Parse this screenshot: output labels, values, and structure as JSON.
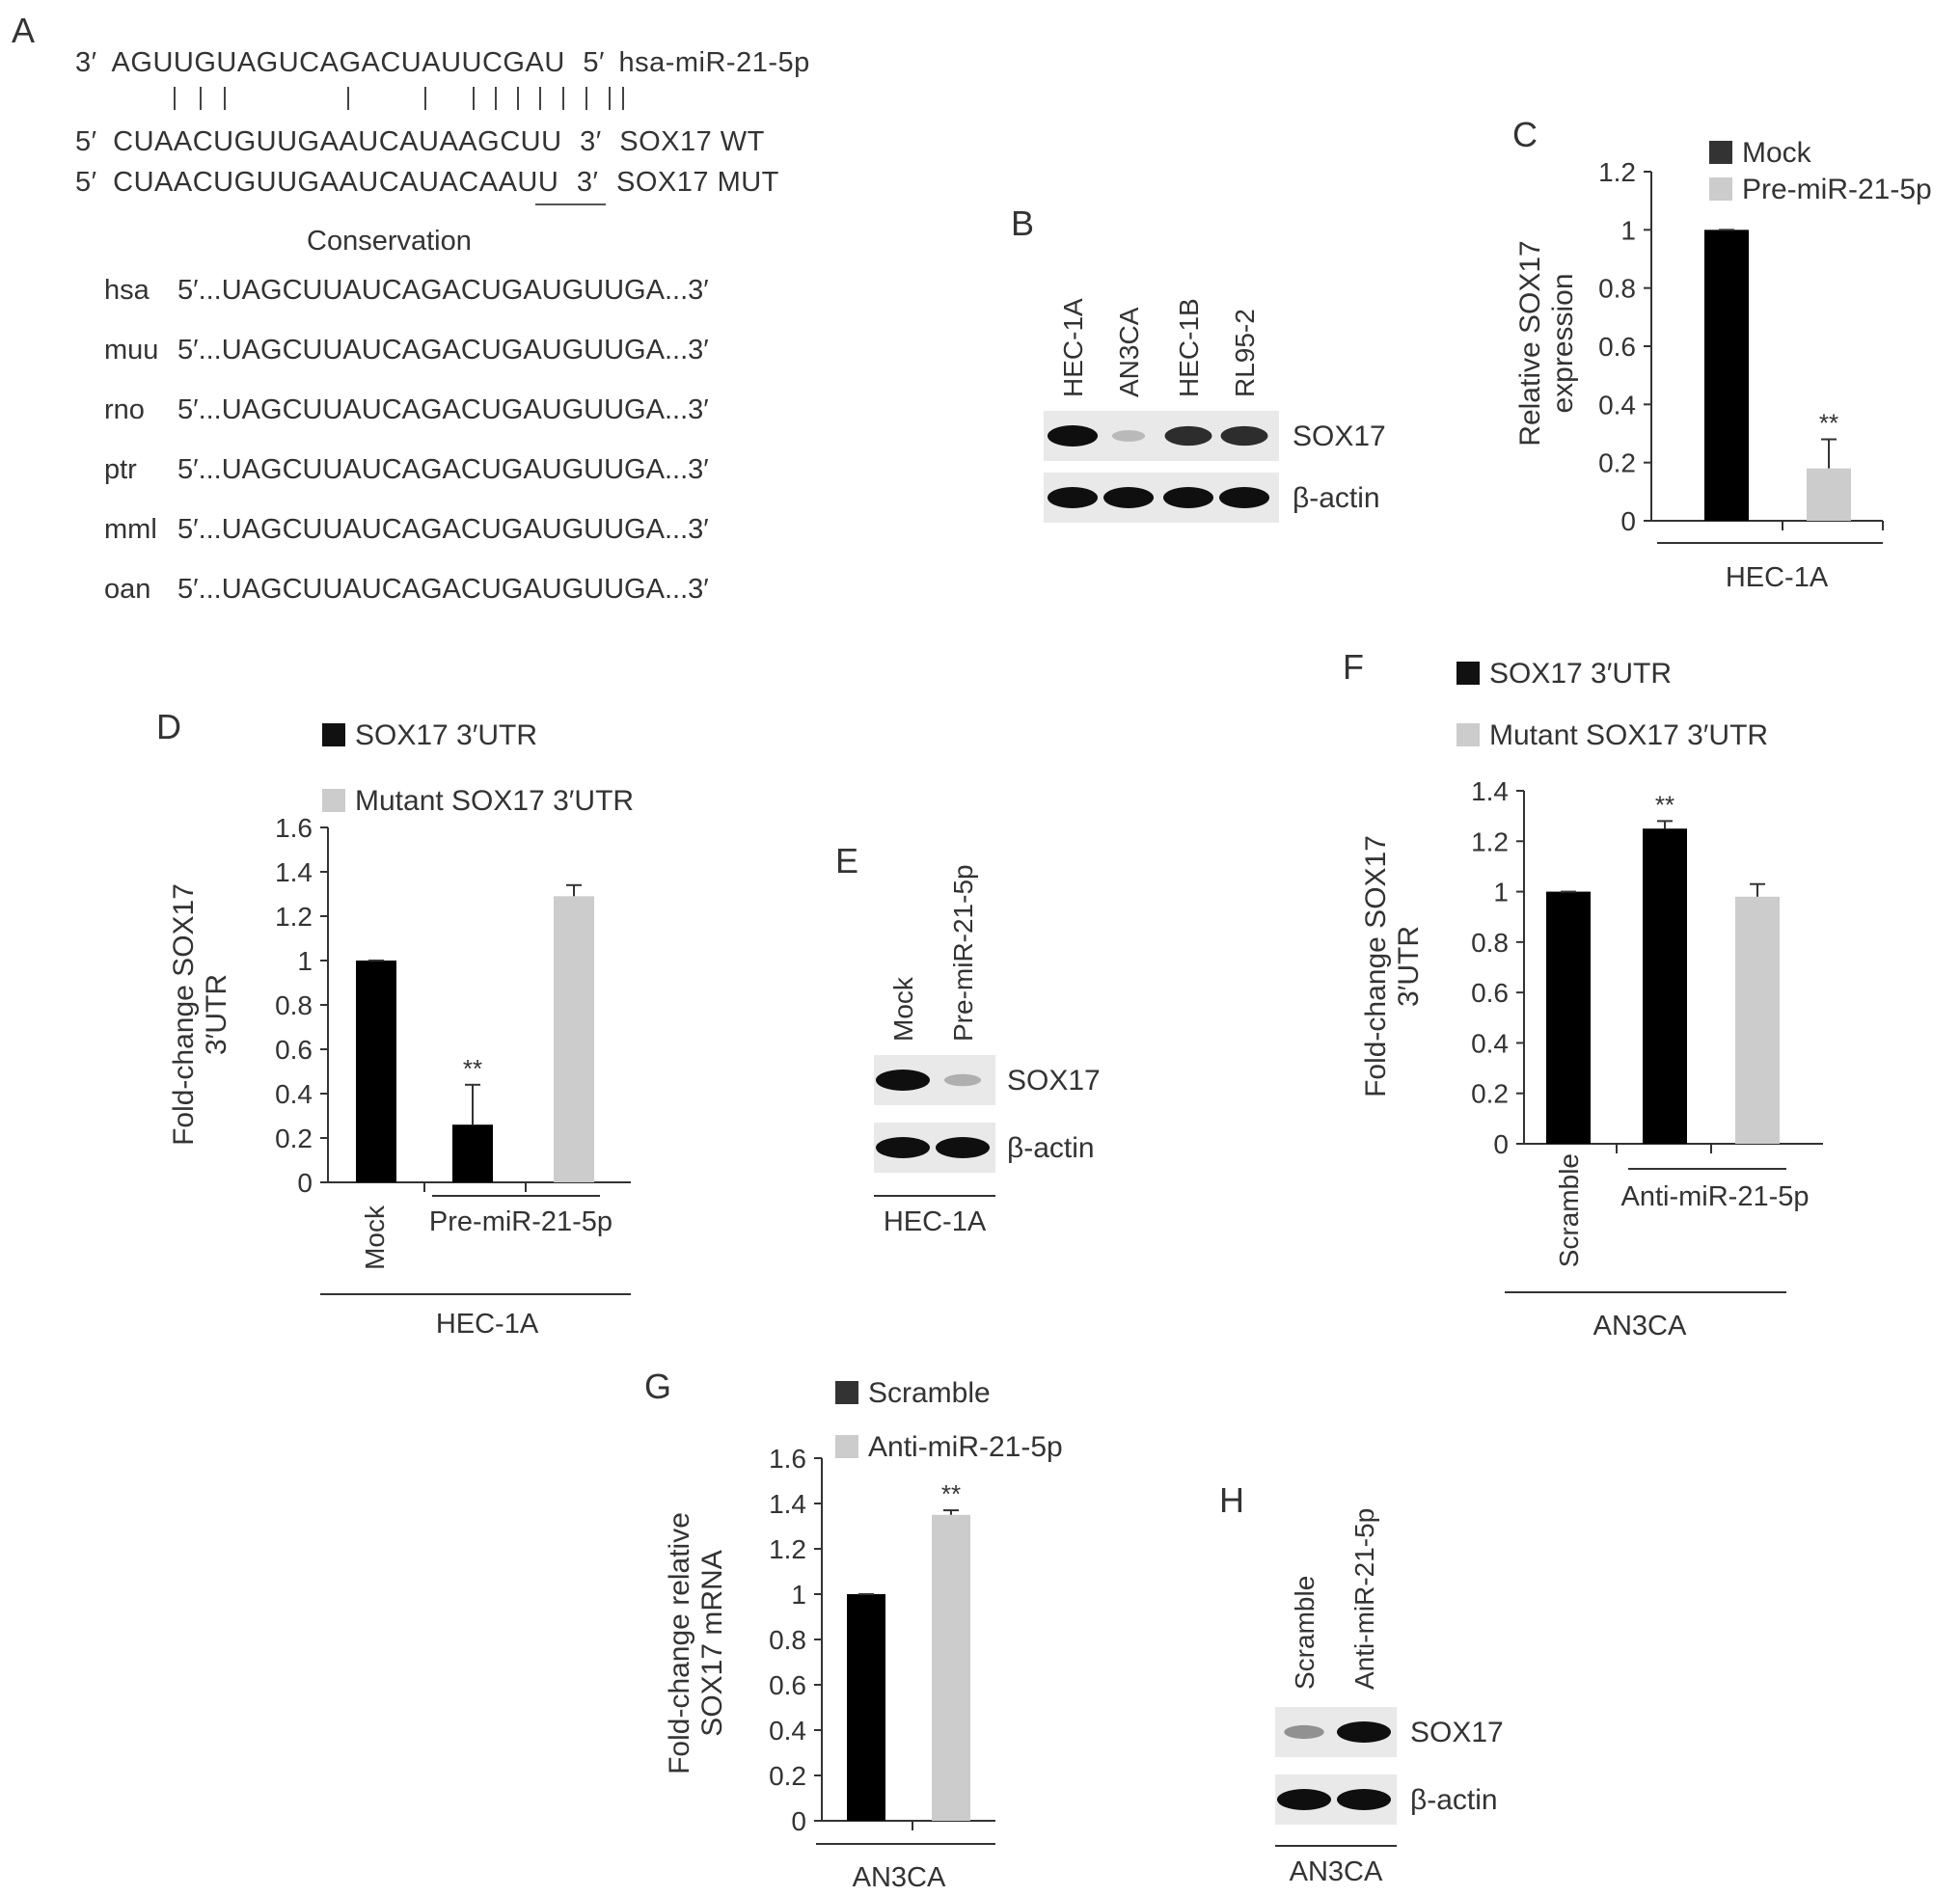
{
  "panels": {
    "A": {
      "letter": "A",
      "mirna": {
        "p3": "3′",
        "seq": "AGUUGUAGUCAGACUAUUCGAU",
        "p5": "5′",
        "name": "hsa-miR-21-5p"
      },
      "pairing": "|||          |       |       ||||||||",
      "wt": {
        "p5": "5′",
        "seq": "CUAACUGUUGAAUCAUAAGCUU",
        "p3": "3′",
        "name": "SOX17 WT"
      },
      "mut": {
        "p5": "5′",
        "seq": "CUAACUGUUGAAUCAUACAAUU",
        "p3": "3′",
        "name": "SOX17 MUT"
      },
      "conservation_title": "Conservation",
      "conservation": [
        {
          "species": "hsa",
          "seq": "5′...UAGCUUAUCAGACUGAUGUUGA...3′"
        },
        {
          "species": "muu",
          "seq": "5′...UAGCUUAUCAGACUGAUGUUGA...3′"
        },
        {
          "species": "rno",
          "seq": "5′...UAGCUUAUCAGACUGAUGUUGA...3′"
        },
        {
          "species": "ptr",
          "seq": "5′...UAGCUUAUCAGACUGAUGUUGA...3′"
        },
        {
          "species": "mml",
          "seq": "5′...UAGCUUAUCAGACUGAUGUUGA...3′"
        },
        {
          "species": "oan",
          "seq": "5′...UAGCUUAUCAGACUGAUGUUGA...3′"
        }
      ]
    },
    "B": {
      "letter": "B",
      "lanes": [
        "HEC-1A",
        "AN3CA",
        "HEC-1B",
        "RL95-2"
      ],
      "bands": [
        "SOX17",
        "β-actin"
      ],
      "sox17_intensity": [
        1.0,
        0.15,
        0.85,
        0.85
      ]
    },
    "E": {
      "letter": "E",
      "lanes": [
        "Mock",
        "Pre-miR-21-5p"
      ],
      "bands": [
        "SOX17",
        "β-actin"
      ],
      "group": "HEC-1A",
      "sox17_intensity": [
        1.0,
        0.2
      ]
    },
    "H": {
      "letter": "H",
      "lanes": [
        "Scramble",
        "Anti-miR-21-5p"
      ],
      "bands": [
        "SOX17",
        "β-actin"
      ],
      "group": "AN3CA",
      "sox17_intensity": [
        0.35,
        1.0
      ]
    }
  },
  "chart_data": [
    {
      "panel": "C",
      "type": "bar",
      "ylabel": [
        "Relative SOX17",
        "expression"
      ],
      "ylim": [
        0,
        1.2
      ],
      "yticks": [
        "0",
        "0.2",
        "0.4",
        "0.6",
        "0.8",
        "1",
        "1.2"
      ],
      "categories": [
        "Mock",
        "Pre-miR-21-5p"
      ],
      "values": [
        1.0,
        0.18
      ],
      "errors": [
        0.0,
        0.1
      ],
      "colors": [
        "#000000",
        "#cccccc"
      ],
      "significance": [
        "",
        "**"
      ],
      "legend": [
        "Mock",
        "Pre-miR-21-5p"
      ],
      "group_label": "HEC-1A"
    },
    {
      "panel": "D",
      "type": "bar",
      "ylabel": [
        "Fold-change SOX17",
        "3′UTR"
      ],
      "ylim": [
        0,
        1.6
      ],
      "yticks": [
        "0",
        "0.2",
        "0.4",
        "0.6",
        "0.8",
        "1",
        "1.2",
        "1.4",
        "1.6"
      ],
      "values": [
        1.0,
        0.26,
        1.29
      ],
      "errors": [
        0.0,
        0.18,
        0.05
      ],
      "colors": [
        "#000000",
        "#000000",
        "#cccccc"
      ],
      "significance": [
        "",
        "**",
        ""
      ],
      "legend": [
        "SOX17 3′UTR",
        "Mutant SOX17 3′UTR"
      ],
      "xlabels": [
        "Mock",
        "Pre-miR-21-5p"
      ],
      "group_label": "HEC-1A"
    },
    {
      "panel": "F",
      "type": "bar",
      "ylabel": [
        "Fold-change SOX17",
        "3′UTR"
      ],
      "ylim": [
        0,
        1.4
      ],
      "yticks": [
        "0",
        "0.2",
        "0.4",
        "0.6",
        "0.8",
        "1",
        "1.2",
        "1.4"
      ],
      "values": [
        1.0,
        1.25,
        0.98
      ],
      "errors": [
        0.0,
        0.03,
        0.05
      ],
      "colors": [
        "#000000",
        "#000000",
        "#cccccc"
      ],
      "significance": [
        "",
        "**",
        ""
      ],
      "legend": [
        "SOX17 3′UTR",
        "Mutant SOX17 3′UTR"
      ],
      "xlabels": [
        "Scramble",
        "Anti-miR-21-5p"
      ],
      "group_label": "AN3CA"
    },
    {
      "panel": "G",
      "type": "bar",
      "ylabel": [
        "Fold-change relative",
        "SOX17 mRNA"
      ],
      "ylim": [
        0,
        1.6
      ],
      "yticks": [
        "0",
        "0.2",
        "0.4",
        "0.6",
        "0.8",
        "1",
        "1.2",
        "1.4",
        "1.6"
      ],
      "categories": [
        "Scramble",
        "Anti-miR-21-5p"
      ],
      "values": [
        1.0,
        1.35
      ],
      "errors": [
        0.0,
        0.02
      ],
      "colors": [
        "#000000",
        "#cccccc"
      ],
      "significance": [
        "",
        "**"
      ],
      "legend": [
        "Scramble",
        "Anti-miR-21-5p"
      ],
      "group_label": "AN3CA"
    }
  ]
}
